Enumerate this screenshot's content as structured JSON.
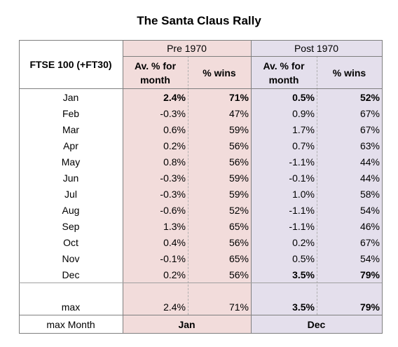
{
  "title": "The Santa Claus Rally",
  "table": {
    "row_header": "FTSE 100 (+FT30)",
    "groups": [
      "Pre 1970",
      "Post 1970"
    ],
    "columns": [
      "Av. % for month",
      "% wins",
      "Av. % for month",
      "% wins"
    ],
    "rows": [
      [
        "Jan",
        "2.4%",
        "71%",
        "0.5%",
        "52%"
      ],
      [
        "Feb",
        "-0.3%",
        "47%",
        "0.9%",
        "67%"
      ],
      [
        "Mar",
        "0.6%",
        "59%",
        "1.7%",
        "67%"
      ],
      [
        "Apr",
        "0.2%",
        "56%",
        "0.7%",
        "63%"
      ],
      [
        "May",
        "0.8%",
        "56%",
        "-1.1%",
        "44%"
      ],
      [
        "Jun",
        "-0.3%",
        "59%",
        "-0.1%",
        "44%"
      ],
      [
        "Jul",
        "-0.3%",
        "59%",
        "1.0%",
        "58%"
      ],
      [
        "Aug",
        "-0.6%",
        "52%",
        "-1.1%",
        "54%"
      ],
      [
        "Sep",
        "1.3%",
        "65%",
        "-1.1%",
        "46%"
      ],
      [
        "Oct",
        "0.4%",
        "56%",
        "0.2%",
        "67%"
      ],
      [
        "Nov",
        "-0.1%",
        "65%",
        "0.5%",
        "54%"
      ],
      [
        "Dec",
        "0.2%",
        "56%",
        "3.5%",
        "79%"
      ]
    ],
    "max_row": [
      "max",
      "2.4%",
      "71%",
      "3.5%",
      "79%"
    ],
    "max_month_row": [
      "max Month",
      "Jan",
      "Dec"
    ]
  }
}
